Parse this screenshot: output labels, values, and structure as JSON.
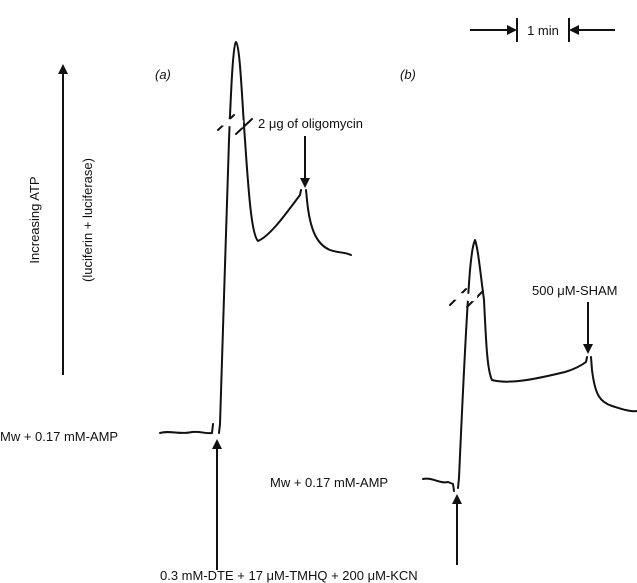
{
  "labels": {
    "scale": "1 min",
    "y_axis": "Increasing ATP",
    "y_axis_sub": "(luciferin + luciferase)",
    "panel_a": "(a)",
    "panel_b": "(b)",
    "oligomycin": "2 μg of oligomycin",
    "sham": "500 μM-SHAM",
    "baseline_a": "Mw + 0.17 mM-AMP",
    "baseline_b": "Mw + 0.17 mM-AMP",
    "additions": "0.3 mM-DTE + 17 μM-TMHQ + 200 μM-KCN"
  }
}
